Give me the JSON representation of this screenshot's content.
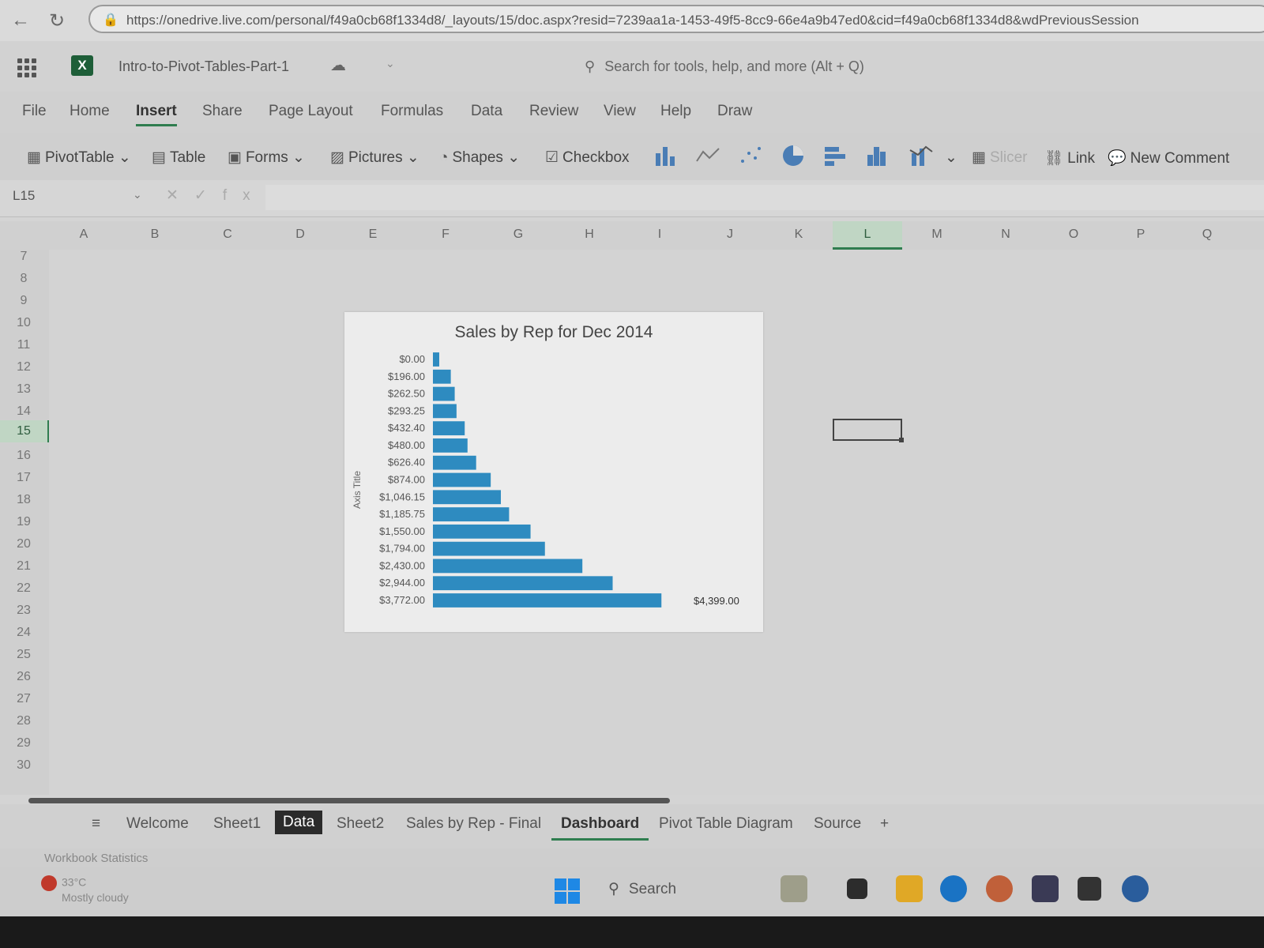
{
  "browser": {
    "url": "https://onedrive.live.com/personal/f49a0cb68f1334d8/_layouts/15/doc.aspx?resid=7239aa1a-1453-49f5-8cc9-66e4a9b47ed0&cid=f49a0cb68f1334d8&wdPreviousSession"
  },
  "app": {
    "doc_title": "Intro-to-Pivot-Tables-Part-1",
    "search_placeholder": "Search for tools, help, and more (Alt + Q)"
  },
  "tabs": [
    "File",
    "Home",
    "Insert",
    "Share",
    "Page Layout",
    "Formulas",
    "Data",
    "Review",
    "View",
    "Help",
    "Draw"
  ],
  "active_tab": "Insert",
  "ribbon": {
    "pivottable": "PivotTable",
    "table": "Table",
    "forms": "Forms",
    "pictures": "Pictures",
    "shapes": "Shapes",
    "checkbox": "Checkbox",
    "slicer": "Slicer",
    "link": "Link",
    "new_comment": "New Comment"
  },
  "formula_bar": {
    "name_box": "L15",
    "fx": "fx"
  },
  "columns": [
    "A",
    "B",
    "C",
    "D",
    "E",
    "F",
    "G",
    "H",
    "I",
    "J",
    "K",
    "L",
    "M",
    "N",
    "O",
    "P",
    "Q"
  ],
  "selected_column": "L",
  "rows": [
    "7",
    "8",
    "9",
    "10",
    "11",
    "12",
    "13",
    "14",
    "15",
    "16",
    "17",
    "18",
    "19",
    "20",
    "21",
    "22",
    "23",
    "24",
    "25",
    "26",
    "27",
    "28",
    "29",
    "30"
  ],
  "selected_row": "15",
  "chart_data": {
    "type": "bar",
    "orientation": "horizontal",
    "title": "Sales by Rep for Dec 2014",
    "ylabel": "Axis Title",
    "categories": [
      "$0.00",
      "$196.00",
      "$262.50",
      "$293.25",
      "$432.40",
      "$480.00",
      "$626.40",
      "$874.00",
      "$1,046.15",
      "$1,185.75",
      "$1,550.00",
      "$1,794.00",
      "$2,430.00",
      "$2,944.00",
      "$3,772.00"
    ],
    "values": [
      0,
      196,
      262.5,
      293.25,
      432.4,
      480,
      626.4,
      874,
      1046.15,
      1185.75,
      1550,
      1794,
      2430,
      2944,
      3772
    ],
    "last_data_label": "$4,399.00",
    "xlim": [
      0,
      4399
    ],
    "color": "#2e8bc0",
    "grid": false,
    "legend": "none"
  },
  "sheet_tabs": [
    "Welcome",
    "Sheet1",
    "Data",
    "Sheet2",
    "Sales by Rep - Final",
    "Dashboard",
    "Pivot Table Diagram",
    "Source"
  ],
  "active_sheet": "Dashboard",
  "add_sheet": "+",
  "status": {
    "text": "Workbook Statistics"
  },
  "taskbar": {
    "temp": "33°C",
    "weather": "Mostly cloudy",
    "search": "Search"
  }
}
